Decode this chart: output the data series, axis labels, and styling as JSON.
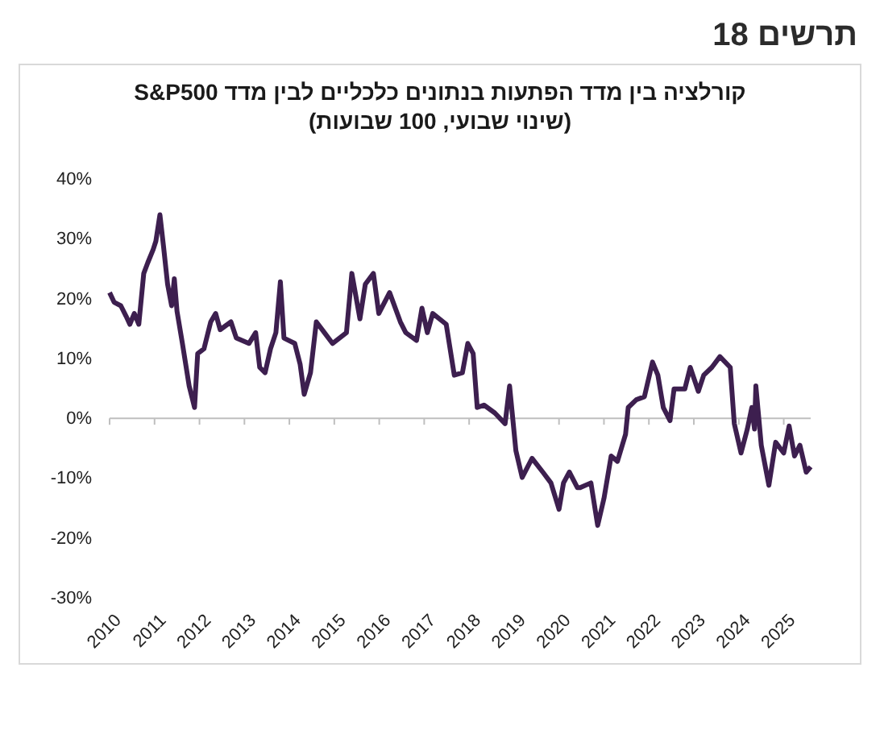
{
  "chart_data": {
    "type": "line",
    "title": "תרשים 18",
    "subtitle": "קורלציה בין מדד הפתעות בנתונים כלכליים לבין מדד S&P500 (שינוי שבועי, 100 שבועות)",
    "x": [
      2010.0,
      2010.1,
      2010.25,
      2010.37,
      2010.45,
      2010.55,
      2010.65,
      2010.76,
      2010.85,
      2010.97,
      2011.03,
      2011.12,
      2011.2,
      2011.29,
      2011.38,
      2011.44,
      2011.5,
      2011.62,
      2011.77,
      2011.89,
      2011.96,
      2012.1,
      2012.25,
      2012.36,
      2012.46,
      2012.7,
      2012.82,
      2013.1,
      2013.25,
      2013.34,
      2013.46,
      2013.58,
      2013.7,
      2013.8,
      2013.88,
      2014.12,
      2014.24,
      2014.33,
      2014.47,
      2014.6,
      2014.78,
      2014.96,
      2015.27,
      2015.39,
      2015.57,
      2015.69,
      2015.87,
      2015.99,
      2016.23,
      2016.47,
      2016.59,
      2016.83,
      2016.95,
      2017.07,
      2017.19,
      2017.49,
      2017.67,
      2017.85,
      2017.97,
      2018.09,
      2018.18,
      2018.33,
      2018.57,
      2018.8,
      2018.9,
      2019.04,
      2019.18,
      2019.4,
      2019.64,
      2019.82,
      2020.0,
      2020.1,
      2020.23,
      2020.41,
      2020.47,
      2020.71,
      2020.86,
      2021.0,
      2021.16,
      2021.3,
      2021.48,
      2021.54,
      2021.72,
      2021.9,
      2022.08,
      2022.2,
      2022.32,
      2022.47,
      2022.56,
      2022.8,
      2022.92,
      2023.1,
      2023.22,
      2023.4,
      2023.58,
      2023.81,
      2023.9,
      2024.05,
      2024.19,
      2024.29,
      2024.35,
      2024.38,
      2024.5,
      2024.67,
      2024.82,
      2025.0,
      2025.12,
      2025.24,
      2025.36,
      2025.5,
      2025.6
    ],
    "series": [
      {
        "color": "#3d1f4f",
        "values": [
          21,
          19.4,
          18.8,
          17,
          15.7,
          17.5,
          15.7,
          24.2,
          26,
          28.2,
          29.6,
          34,
          28.7,
          22.4,
          18.8,
          23.3,
          17.9,
          12.5,
          5.4,
          1.8,
          10.8,
          11.6,
          16.1,
          17.5,
          14.8,
          16.1,
          13.4,
          12.5,
          14.3,
          8.5,
          7.6,
          11.6,
          14.3,
          22.8,
          13.4,
          12.5,
          9,
          4,
          7.6,
          16.1,
          14.3,
          12.5,
          14.3,
          24.2,
          16.6,
          22.4,
          24.2,
          17.5,
          21,
          16.1,
          14.3,
          13,
          18.4,
          14.3,
          17.5,
          15.7,
          7.2,
          7.6,
          12.5,
          10.8,
          1.8,
          2.2,
          0.9,
          -0.9,
          5.4,
          -5.4,
          -9.9,
          -6.7,
          -9,
          -10.8,
          -15.2,
          -10.8,
          -9,
          -11.6,
          -11.6,
          -10.8,
          -17.9,
          -13.4,
          -6.3,
          -7.2,
          -2.7,
          1.8,
          3.1,
          3.6,
          9.4,
          7.2,
          1.8,
          -0.4,
          4.9,
          4.9,
          8.5,
          4.5,
          7.2,
          8.5,
          10.3,
          8.5,
          -0.9,
          -5.8,
          -1.8,
          1.8,
          -1.8,
          5.4,
          -4.5,
          -11.2,
          -4,
          -5.8,
          -1.3,
          -6.3,
          -4.5,
          -9,
          -8.1
        ]
      }
    ],
    "xlim": [
      2010,
      2025.6
    ],
    "xticks": [
      2010,
      2011,
      2012,
      2013,
      2014,
      2015,
      2016,
      2017,
      2018,
      2019,
      2020,
      2021,
      2022,
      2023,
      2024,
      2025
    ],
    "ylim": [
      -30,
      40
    ],
    "yticks": [
      {
        "value": -30,
        "label": "-30%"
      },
      {
        "value": -20,
        "label": "-20%"
      },
      {
        "value": -10,
        "label": "-10%"
      },
      {
        "value": 0,
        "label": "0%"
      },
      {
        "value": 10,
        "label": "10%"
      },
      {
        "value": 20,
        "label": "20%"
      },
      {
        "value": 30,
        "label": "30%"
      },
      {
        "value": 40,
        "label": "40%"
      }
    ],
    "ref_lines": [
      {
        "axis": "y",
        "value": 0,
        "color": "#bfbfbf"
      }
    ],
    "grid": false,
    "marker": "none",
    "line_style": "solid"
  }
}
